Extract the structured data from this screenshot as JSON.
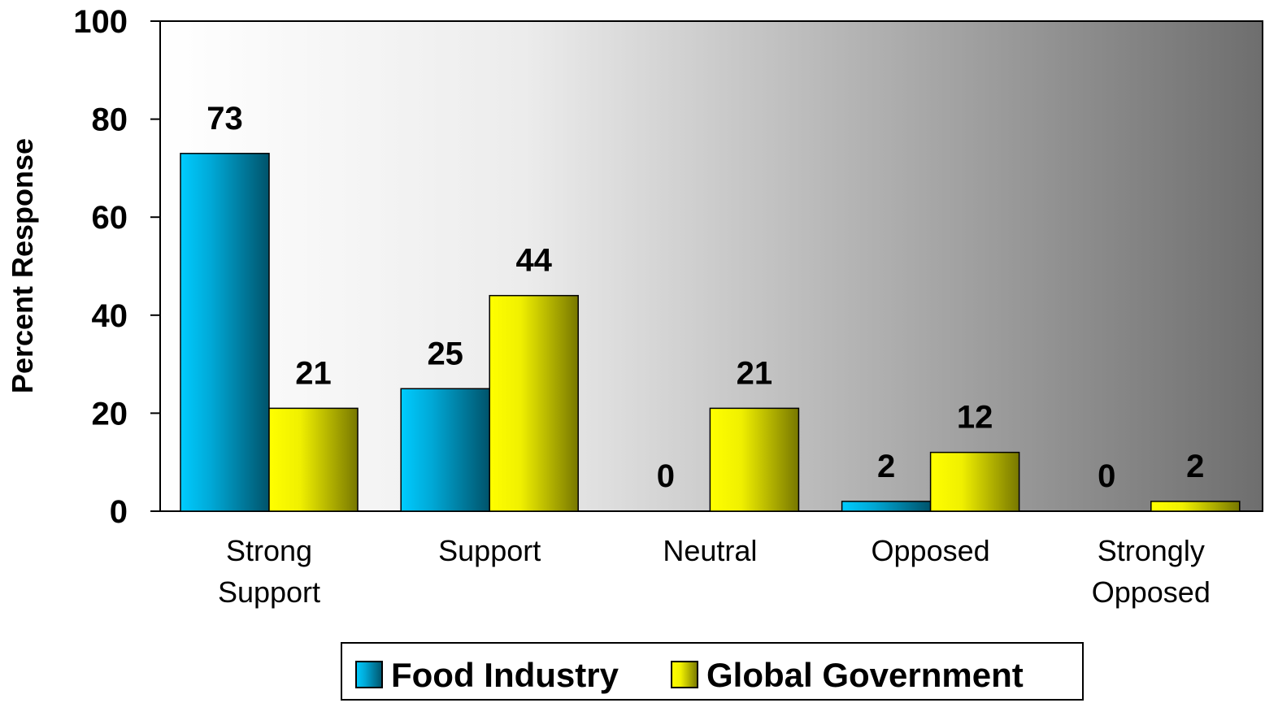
{
  "chart_data": {
    "type": "bar",
    "categories": [
      [
        "Strong",
        "Support"
      ],
      [
        "Support"
      ],
      [
        "Neutral"
      ],
      [
        "Opposed"
      ],
      [
        "Strongly",
        "Opposed"
      ]
    ],
    "series": [
      {
        "name": "Food Industry",
        "values": [
          73,
          25,
          0,
          2,
          0
        ],
        "color": "#00c8ff"
      },
      {
        "name": "Global Government",
        "values": [
          21,
          44,
          21,
          12,
          2
        ],
        "color": "#ffff00"
      }
    ],
    "ylabel": "Percent Response",
    "ylim": [
      0,
      100
    ],
    "yticks": [
      0,
      20,
      40,
      60,
      80,
      100
    ],
    "legend_position": "bottom-center",
    "grid": false
  }
}
